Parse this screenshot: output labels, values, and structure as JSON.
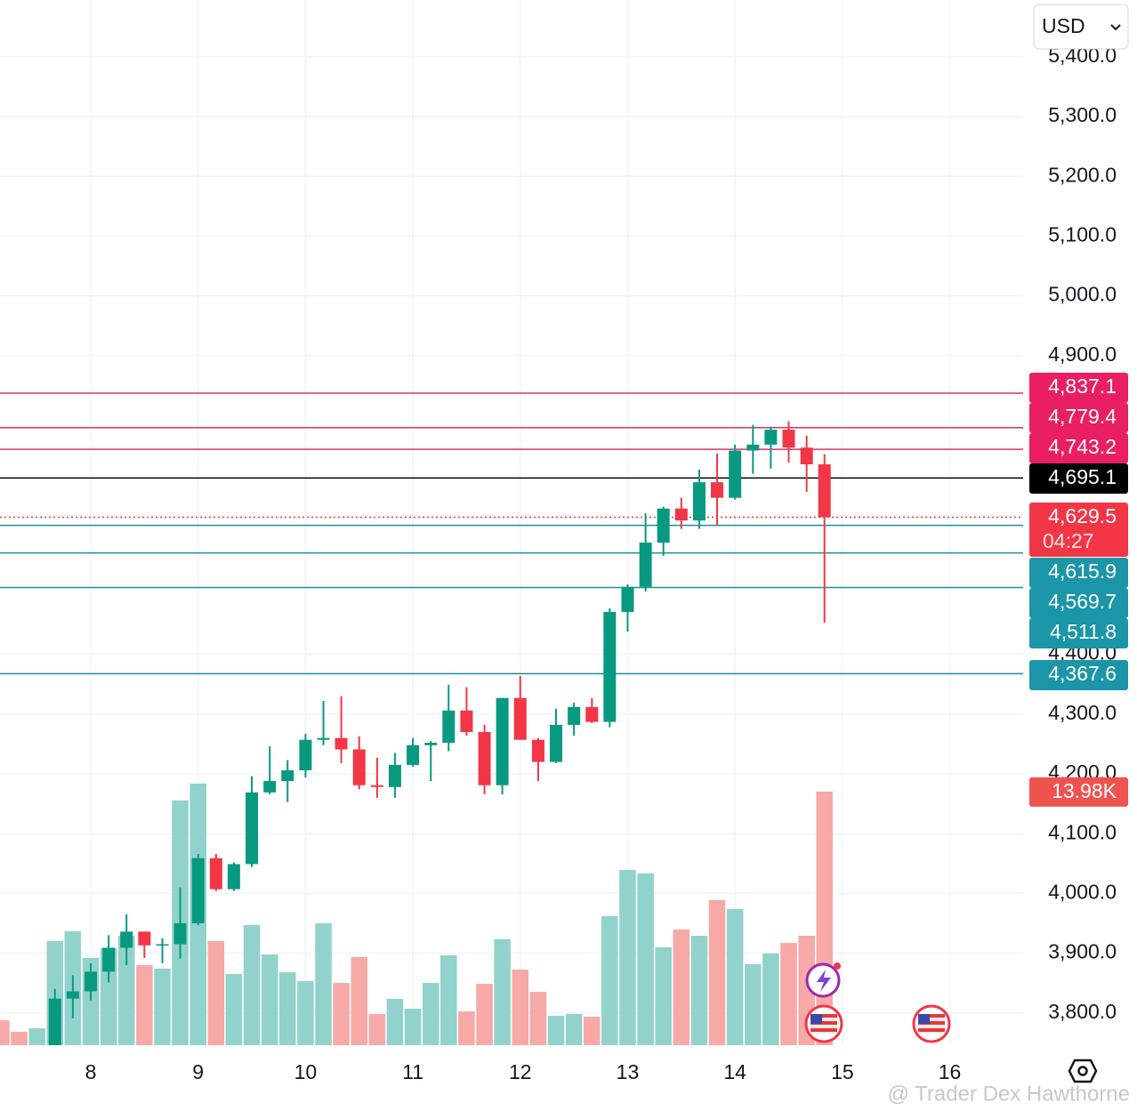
{
  "chart_data": {
    "type": "candlestick",
    "currency": "USD",
    "watermark": "@ Trader Dex Hawthorne",
    "up_color": "#089981",
    "down_color": "#f23645",
    "volume_up_color": "#92d2cc",
    "volume_down_color": "#f7a9a7",
    "grid": true,
    "xlim": [
      7.155,
      16.683
    ],
    "xticks": [
      8,
      9,
      10,
      11,
      12,
      13,
      14,
      15,
      16
    ],
    "ylim": [
      3746,
      5495
    ],
    "yticks": [
      {
        "value": 3800,
        "label": "3,800.0"
      },
      {
        "value": 3900,
        "label": "3,900.0"
      },
      {
        "value": 4000,
        "label": "4,000.0"
      },
      {
        "value": 4100,
        "label": "4,100.0"
      },
      {
        "value": 4200,
        "label": "4,200.0"
      },
      {
        "value": 4300,
        "label": "4,300.0"
      },
      {
        "value": 4400,
        "label": "4,400.0"
      },
      {
        "value": 4900,
        "label": "4,900.0"
      },
      {
        "value": 5000,
        "label": "5,000.0"
      },
      {
        "value": 5100,
        "label": "5,100.0"
      },
      {
        "value": 5200,
        "label": "5,200.0"
      },
      {
        "value": 5300,
        "label": "5,300.0"
      },
      {
        "value": 5400,
        "label": "5,400.0"
      }
    ],
    "x": [
      7.167,
      7.333,
      7.5,
      7.667,
      7.833,
      8,
      8.167,
      8.333,
      8.5,
      8.667,
      8.833,
      9,
      9.167,
      9.333,
      9.5,
      9.667,
      9.833,
      10,
      10.167,
      10.333,
      10.5,
      10.667,
      10.833,
      11,
      11.167,
      11.333,
      11.5,
      11.667,
      11.833,
      12,
      12.167,
      12.333,
      12.5,
      12.667,
      12.833,
      13,
      13.167,
      13.333,
      13.5,
      13.667,
      13.833,
      14,
      14.167,
      14.333,
      14.5,
      14.667,
      14.833
    ],
    "open": [
      null,
      null,
      null,
      3745,
      3824,
      3836,
      3869,
      3909,
      3936,
      3913,
      3915,
      3950,
      4059,
      4007,
      4049,
      4169,
      4188,
      4206,
      4257,
      4260,
      4241,
      4181,
      4178,
      4215,
      4248,
      4252,
      4306,
      4270,
      4181,
      4327,
      4257,
      4220,
      4282,
      4312,
      4287,
      4471,
      4513,
      4587,
      4644,
      4624,
      4688,
      4662,
      4741,
      4751,
      4776,
      4746,
      4718
    ],
    "high": [
      null,
      null,
      null,
      3840,
      3863,
      3883,
      3930,
      3965,
      3936,
      3925,
      4010,
      4066,
      4066,
      4052,
      4196,
      4246,
      4223,
      4267,
      4322,
      4330,
      4263,
      4227,
      4235,
      4260,
      4255,
      4349,
      4345,
      4282,
      4327,
      4364,
      4260,
      4309,
      4319,
      4327,
      4477,
      4517,
      4636,
      4647,
      4662,
      4709,
      4736,
      4751,
      4784,
      4781,
      4790,
      4766,
      4735
    ],
    "low": [
      null,
      null,
      null,
      3745,
      3791,
      3821,
      3851,
      3880,
      3892,
      3883,
      3891,
      3947,
      4004,
      4004,
      4044,
      4166,
      4153,
      4194,
      4248,
      4218,
      4174,
      4160,
      4160,
      4212,
      4188,
      4238,
      4264,
      4166,
      4166,
      4257,
      4188,
      4218,
      4264,
      4285,
      4278,
      4438,
      4505,
      4565,
      4610,
      4610,
      4617,
      4659,
      4702,
      4711,
      4721,
      4672,
      4453
    ],
    "close": [
      null,
      null,
      null,
      3824,
      3836,
      3869,
      3909,
      3936,
      3913,
      3915,
      3950,
      4059,
      4007,
      4049,
      4169,
      4188,
      4206,
      4257,
      4260,
      4241,
      4181,
      4178,
      4215,
      4248,
      4252,
      4306,
      4270,
      4181,
      4327,
      4257,
      4220,
      4282,
      4312,
      4287,
      4471,
      4513,
      4587,
      4644,
      4624,
      4688,
      4662,
      4741,
      4751,
      4776,
      4746,
      4718,
      4629.5
    ],
    "volume": {
      "up": [
        false,
        false,
        true,
        true,
        true,
        true,
        true,
        true,
        false,
        true,
        true,
        true,
        false,
        true,
        true,
        true,
        true,
        true,
        true,
        false,
        false,
        false,
        true,
        true,
        true,
        true,
        false,
        false,
        true,
        false,
        false,
        true,
        true,
        false,
        true,
        true,
        true,
        true,
        false,
        true,
        false,
        true,
        true,
        true,
        false,
        false,
        false
      ],
      "values": [
        1.37,
        0.74,
        0.93,
        5.74,
        6.28,
        4.81,
        5.35,
        6.03,
        4.41,
        4.22,
        13.49,
        14.42,
        5.74,
        3.92,
        6.62,
        5.0,
        4.02,
        3.53,
        6.72,
        3.43,
        4.86,
        1.72,
        2.55,
        2.01,
        3.43,
        4.95,
        1.86,
        3.38,
        5.84,
        4.17,
        2.94,
        1.62,
        1.72,
        1.57,
        7.11,
        9.66,
        9.47,
        5.4,
        6.38,
        6.03,
        8.0,
        7.5,
        4.46,
        5.05,
        5.64,
        6.03,
        13.98
      ],
      "value_labels": [
        null,
        null,
        null,
        null,
        null,
        null,
        null,
        null,
        null,
        null,
        null,
        null,
        null,
        null,
        null,
        null,
        null,
        null,
        null,
        null,
        null,
        null,
        null,
        null,
        null,
        null,
        null,
        null,
        null,
        null,
        null,
        null,
        null,
        null,
        null,
        null,
        null,
        null,
        null,
        null,
        null,
        null,
        null,
        null,
        null,
        null,
        "13.98K"
      ],
      "lim": [
        0,
        57.6
      ]
    },
    "price_lines": [
      {
        "value": 4837.1,
        "label": "4,837.1",
        "color": "#d6336c",
        "label_color": "#e91e63"
      },
      {
        "value": 4779.4,
        "label": "4,779.4",
        "color": "#d6336c",
        "label_color": "#e91e63"
      },
      {
        "value": 4743.2,
        "label": "4,743.2",
        "color": "#d6336c",
        "label_color": "#e91e63"
      },
      {
        "value": 4695.1,
        "label": "4,695.1",
        "color": "#000000",
        "label_color": "#000000"
      },
      {
        "value": 4615.9,
        "label": "4,615.9",
        "color": "#1a8f9c",
        "label_color": "#1b96a8"
      },
      {
        "value": 4569.7,
        "label": "4,569.7",
        "color": "#1a8f9c",
        "label_color": "#1b96a8"
      },
      {
        "value": 4511.8,
        "label": "4,511.8",
        "color": "#1a8f9c",
        "label_color": "#1b96a8"
      },
      {
        "value": 4367.6,
        "label": "4,367.6",
        "color": "#1a8f9c",
        "label_color": "#1b96a8"
      }
    ],
    "current_price": {
      "value": 4629.5,
      "label": "4,629.5",
      "countdown": "04:27",
      "color": "#f23645"
    }
  }
}
